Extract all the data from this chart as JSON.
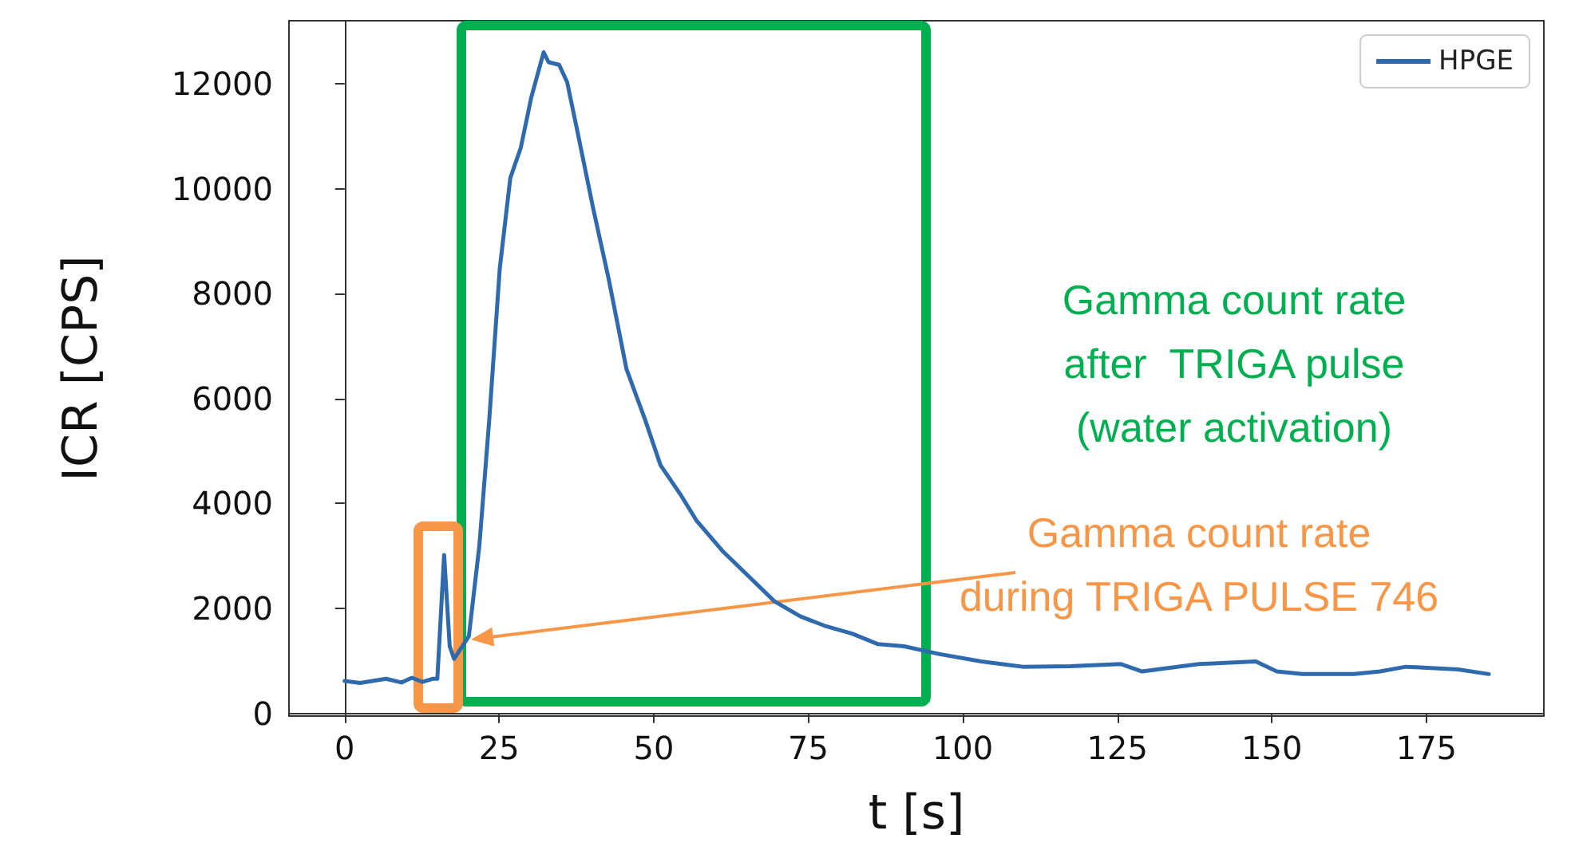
{
  "chart_data": {
    "type": "line",
    "xlabel": "t [s]",
    "ylabel": "ICR [CPS]",
    "legend": "top right",
    "xlim": [
      -9,
      194
    ],
    "xticks": [
      0,
      25,
      50,
      75,
      100,
      125,
      150,
      175
    ],
    "ylim": [
      -50,
      13200
    ],
    "yticks": [
      0,
      2000,
      4000,
      6000,
      8000,
      10000,
      12000
    ],
    "series": [
      {
        "name": "HPGE",
        "color": "#2e6aad",
        "x": [
          0,
          2.5,
          6.7,
          9.2,
          10.9,
          12.6,
          14.2,
          15,
          16.1,
          17,
          17.7,
          20.1,
          21.8,
          23.4,
          25.1,
          26.8,
          28.5,
          30.2,
          32.2,
          33,
          34.7,
          36,
          37.7,
          40.2,
          42.7,
          45.6,
          48.6,
          51.1,
          54.4,
          56.9,
          61.1,
          65.3,
          69.5,
          73.7,
          77.9,
          82.1,
          86.3,
          90.5,
          96.3,
          103,
          109.7,
          117.3,
          125.6,
          129,
          138.2,
          147.4,
          150.8,
          154.9,
          163.3,
          167.5,
          171.7,
          180.1,
          185.1
        ],
        "values": [
          620,
          580,
          660,
          590,
          680,
          600,
          660,
          660,
          3020,
          1280,
          1040,
          1470,
          3200,
          5600,
          8480,
          10200,
          10780,
          11740,
          12600,
          12410,
          12360,
          12030,
          11070,
          9630,
          8290,
          6560,
          5600,
          4730,
          4160,
          3680,
          3100,
          2620,
          2140,
          1850,
          1660,
          1520,
          1320,
          1280,
          1130,
          990,
          890,
          900,
          940,
          800,
          940,
          990,
          800,
          750,
          750,
          800,
          890,
          840,
          750
        ]
      }
    ],
    "annotations": [
      "Gamma count rate\nafter  TRIGA pulse\n(water activation)",
      "Gamma count rate\nduring TRIGA PULSE 746"
    ]
  }
}
